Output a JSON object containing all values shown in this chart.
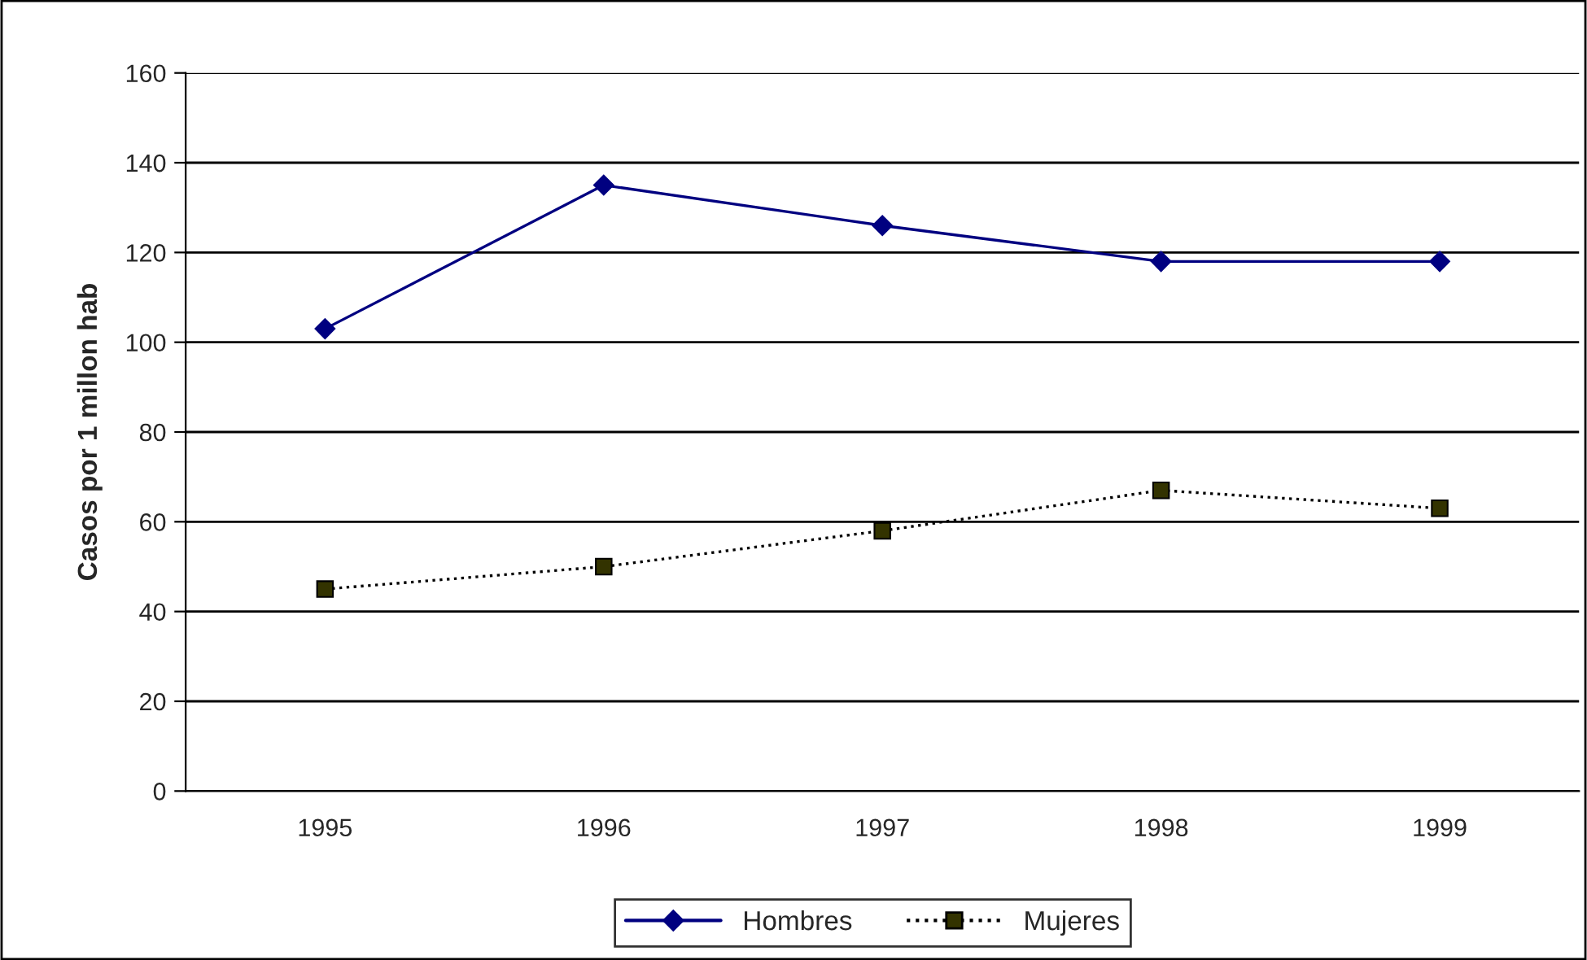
{
  "chart_data": {
    "type": "line",
    "ylabel": "Casos por 1 millon hab",
    "categories": [
      "1995",
      "1996",
      "1997",
      "1998",
      "1999"
    ],
    "series": [
      {
        "name": "Hombres",
        "color": "#000080",
        "values": [
          103,
          135,
          126,
          118,
          118
        ],
        "marker": "diamond",
        "line_style": "solid"
      },
      {
        "name": "Mujeres",
        "color": "#333300",
        "values": [
          45,
          50,
          58,
          67,
          63
        ],
        "marker": "square",
        "line_style": "dotted"
      }
    ],
    "ylim": [
      0,
      160
    ],
    "yticks": [
      0,
      20,
      40,
      60,
      80,
      100,
      120,
      140,
      160
    ],
    "grid": "y",
    "legend": "bottom"
  }
}
